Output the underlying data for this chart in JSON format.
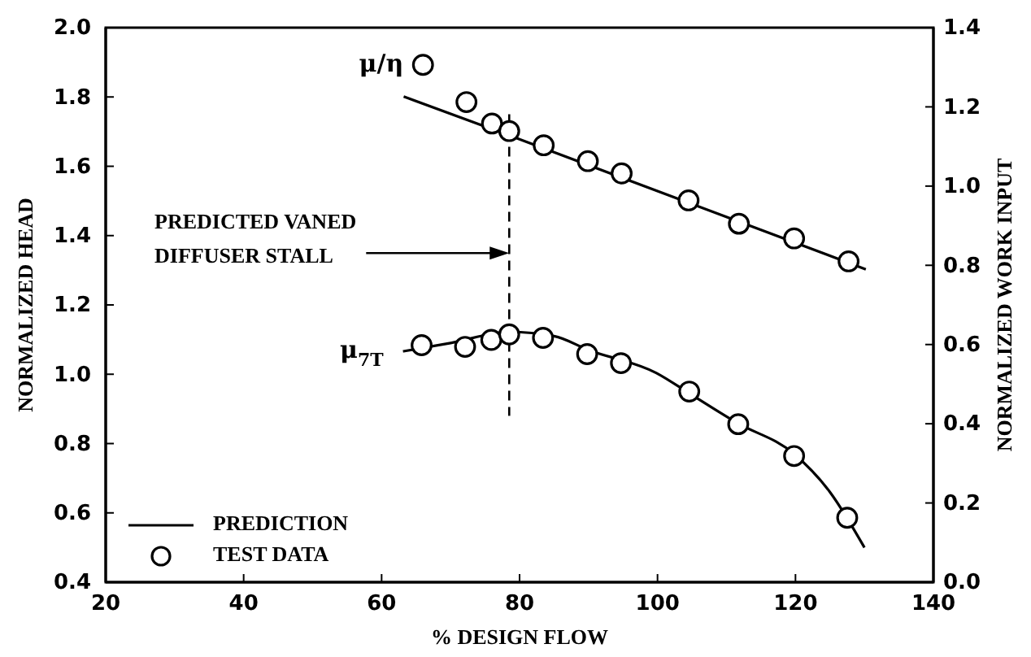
{
  "chart_data": {
    "type": "line",
    "xlabel": "% DESIGN FLOW",
    "ylabel": "NORMALIZED HEAD",
    "y2label": "NORMALIZED WORK INPUT",
    "xlim": [
      20,
      140
    ],
    "xticks": [
      20,
      40,
      60,
      80,
      100,
      120,
      140
    ],
    "ylim": [
      0.4,
      2.0
    ],
    "yticks": [
      0.4,
      0.6,
      0.8,
      {
        "value": 1.0,
        "label": "1.0"
      },
      1.2,
      1.4,
      1.6,
      1.8,
      {
        "value": 2.0,
        "label": "2.0"
      }
    ],
    "y2lim": [
      0.0,
      1.4
    ],
    "y2ticks": [
      {
        "value": 0.0,
        "label": "0.0"
      },
      0.2,
      0.4,
      0.6,
      0.8,
      {
        "value": 1.0,
        "label": "1.0"
      },
      1.2,
      1.4
    ],
    "legend": "bottom left",
    "series": [
      {
        "name": "PREDICTION",
        "axis": "y2",
        "color": "#000000",
        "line_style": "solid",
        "x": [
          63.2,
          78.5,
          130.2
        ],
        "values": [
          1.226,
          1.128,
          0.79
        ]
      },
      {
        "name": "TEST DATA",
        "type": "scatter",
        "axis": "y2",
        "color": "#000000",
        "marker": "circle",
        "x": [
          66.0,
          72.3,
          76.0,
          78.5,
          83.5,
          89.9,
          94.8,
          104.5,
          111.8,
          119.8,
          127.7
        ],
        "values": [
          1.306,
          1.212,
          1.158,
          1.139,
          1.103,
          1.063,
          1.032,
          0.964,
          0.905,
          0.868,
          0.81
        ]
      },
      {
        "color": "#000000",
        "line_style": "solid",
        "x": [
          63.1,
          70,
          78.5,
          85,
          90,
          99.8,
          105,
          111.5,
          119.8,
          125,
          130
        ],
        "values": [
          1.066,
          1.09,
          1.122,
          1.11,
          1.07,
          1.004,
          0.94,
          0.86,
          0.77,
          0.66,
          0.5
        ]
      },
      {
        "type": "scatter",
        "color": "#000000",
        "marker": "circle",
        "x": [
          65.8,
          72.1,
          75.9,
          78.5,
          83.4,
          89.8,
          94.7,
          104.6,
          111.7,
          119.8,
          127.5
        ],
        "values": [
          1.084,
          1.079,
          1.099,
          1.115,
          1.105,
          1.058,
          1.032,
          0.95,
          0.856,
          0.764,
          0.586
        ]
      }
    ],
    "ref_lines": [
      {
        "axis": "x",
        "value": 78.5,
        "line_style": "dashed",
        "color": "#000000"
      }
    ],
    "annotations": [
      {
        "text": "μ/η",
        "x": 66.0,
        "y": 1.892
      },
      {
        "text": "μ$_{7T}$",
        "x": 63.1,
        "y": 1.066
      },
      "PREDICTED VANED\nDIFFUSER STALL"
    ]
  }
}
